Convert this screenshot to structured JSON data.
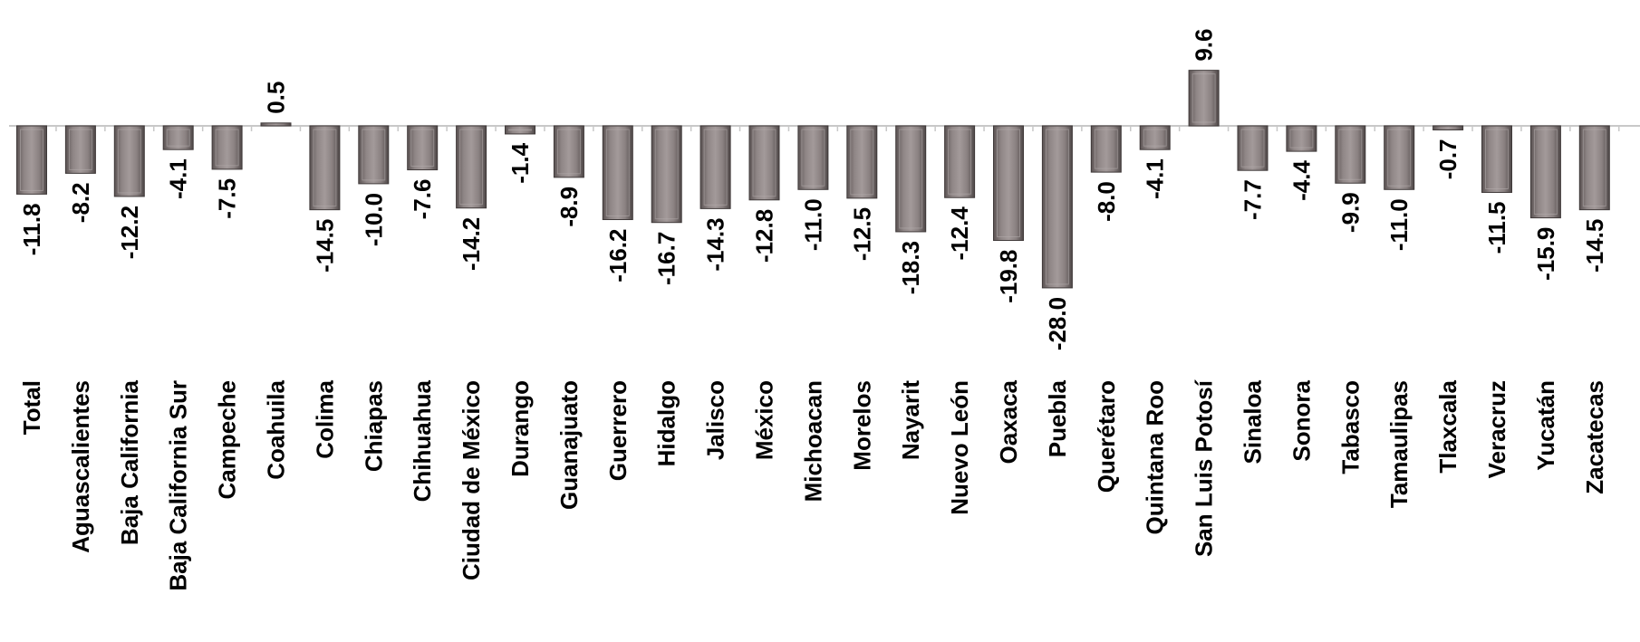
{
  "chart_data": {
    "type": "bar",
    "categories": [
      "Total",
      "Aguascalientes",
      "Baja California",
      "Baja California Sur",
      "Campeche",
      "Coahuila",
      "Colima",
      "Chiapas",
      "Chihuahua",
      "Ciudad de México",
      "Durango",
      "Guanajuato",
      "Guerrero",
      "Hidalgo",
      "Jalisco",
      "México",
      "Michoacan",
      "Morelos",
      "Nayarit",
      "Nuevo León",
      "Oaxaca",
      "Puebla",
      "Querétaro",
      "Quintana Roo",
      "San Luis Potosí",
      "Sinaloa",
      "Sonora",
      "Tabasco",
      "Tamaulipas",
      "Tlaxcala",
      "Veracruz",
      "Yucatán",
      "Zacatecas"
    ],
    "values": [
      -11.8,
      -8.2,
      -12.2,
      -4.1,
      -7.5,
      0.5,
      -14.5,
      -10.0,
      -7.6,
      -14.2,
      -1.4,
      -8.9,
      -16.2,
      -16.7,
      -14.3,
      -12.8,
      -11.0,
      -12.5,
      -18.3,
      -12.4,
      -19.8,
      -28.0,
      -8.0,
      -4.1,
      9.6,
      -7.7,
      -4.4,
      -9.9,
      -11.0,
      -0.7,
      -11.5,
      -15.9,
      -14.5
    ],
    "value_labels": [
      "-11.8",
      "-8.2",
      "-12.2",
      "-4.1",
      "-7.5",
      "0.5",
      "-14.5",
      "-10.0",
      "-7.6",
      "-14.2",
      "-1.4",
      "-8.9",
      "-16.2",
      "-16.7",
      "-14.3",
      "-12.8",
      "-11.0",
      "-12.5",
      "-18.3",
      "-12.4",
      "-19.8",
      "-28.0",
      "-8.0",
      "-4.1",
      "9.6",
      "-7.7",
      "-4.4",
      "-9.9",
      "-11.0",
      "-0.7",
      "-11.5",
      "-15.9",
      "-14.5"
    ],
    "bar_color": "#7d7474",
    "axis_color": "#c8c8c8",
    "grid": false,
    "legend": "none"
  }
}
